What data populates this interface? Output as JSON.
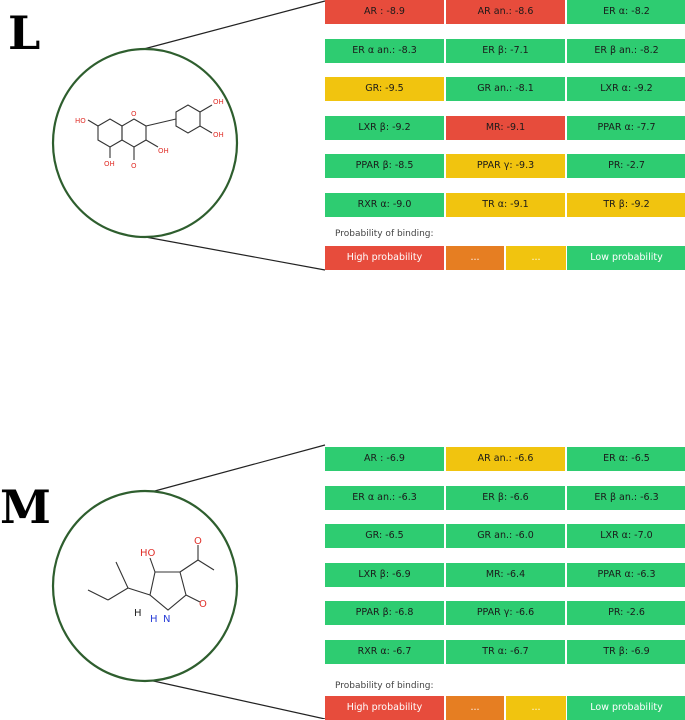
{
  "colors": {
    "high": "#e74c3c",
    "mid_high": "#e67e22",
    "mid_low": "#f1c40f",
    "low": "#2ecc71",
    "circle_stroke": "#2e5e2e"
  },
  "panels": [
    {
      "letter": "L",
      "cells": [
        {
          "label": "AR : -8.9",
          "level": "high"
        },
        {
          "label": "AR an.: -8.6",
          "level": "high"
        },
        {
          "label": "ER α: -8.2",
          "level": "low"
        },
        {
          "label": "ER α an.: -8.3",
          "level": "low"
        },
        {
          "label": "ER β: -7.1",
          "level": "low"
        },
        {
          "label": "ER β an.: -8.2",
          "level": "low"
        },
        {
          "label": "GR: -9.5",
          "level": "mid_low"
        },
        {
          "label": "GR an.: -8.1",
          "level": "low"
        },
        {
          "label": "LXR α: -9.2",
          "level": "low"
        },
        {
          "label": "LXR β: -9.2",
          "level": "low"
        },
        {
          "label": "MR: -9.1",
          "level": "high"
        },
        {
          "label": "PPAR α: -7.7",
          "level": "low"
        },
        {
          "label": "PPAR β: -8.5",
          "level": "low"
        },
        {
          "label": "PPAR γ: -9.3",
          "level": "mid_low"
        },
        {
          "label": "PR: -2.7",
          "level": "low"
        },
        {
          "label": "RXR α: -9.0",
          "level": "low"
        },
        {
          "label": "TR α: -9.1",
          "level": "mid_low"
        },
        {
          "label": "TR β: -9.2",
          "level": "mid_low"
        }
      ],
      "probability_label": "Probability of binding:",
      "legend": [
        "High probability",
        "...",
        "...",
        "Low probability"
      ],
      "molecule_atoms": [
        "HO",
        "OH",
        "OH",
        "O",
        "OH",
        "OH",
        "O"
      ]
    },
    {
      "letter": "M",
      "cells": [
        {
          "label": "AR : -6.9",
          "level": "low"
        },
        {
          "label": "AR an.: -6.6",
          "level": "mid_low"
        },
        {
          "label": "ER α: -6.5",
          "level": "low"
        },
        {
          "label": "ER α an.: -6.3",
          "level": "low"
        },
        {
          "label": "ER β: -6.6",
          "level": "low"
        },
        {
          "label": "ER β an.: -6.3",
          "level": "low"
        },
        {
          "label": "GR: -6.5",
          "level": "low"
        },
        {
          "label": "GR an.: -6.0",
          "level": "low"
        },
        {
          "label": "LXR α: -7.0",
          "level": "low"
        },
        {
          "label": "LXR β: -6.9",
          "level": "low"
        },
        {
          "label": "MR: -6.4",
          "level": "low"
        },
        {
          "label": "PPAR α: -6.3",
          "level": "low"
        },
        {
          "label": "PPAR β: -6.8",
          "level": "low"
        },
        {
          "label": "PPAR γ: -6.6",
          "level": "low"
        },
        {
          "label": "PR: -2.6",
          "level": "low"
        },
        {
          "label": "RXR α: -6.7",
          "level": "low"
        },
        {
          "label": "TR α: -6.7",
          "level": "low"
        },
        {
          "label": "TR β: -6.9",
          "level": "low"
        }
      ],
      "probability_label": "Probability of binding:",
      "legend": [
        "High probability",
        "...",
        "...",
        "Low probability"
      ],
      "molecule_atoms": [
        "HO",
        "O",
        "H",
        "N",
        "H",
        "O"
      ]
    }
  ]
}
